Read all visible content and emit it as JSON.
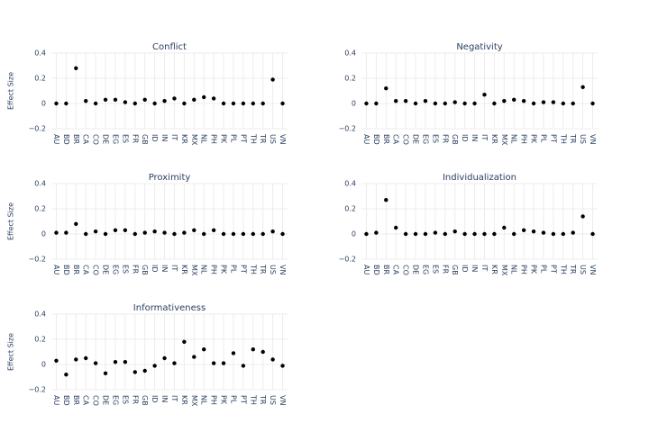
{
  "chart_data": [
    {
      "type": "scatter",
      "title": "Conflict",
      "ylabel": "Effect Size",
      "color": "#000000",
      "categories": [
        "AU",
        "BD",
        "BR",
        "CA",
        "CO",
        "DE",
        "EG",
        "ES",
        "FR",
        "GB",
        "ID",
        "IN",
        "IT",
        "KR",
        "MX",
        "NL",
        "PH",
        "PK",
        "PL",
        "PT",
        "TH",
        "TR",
        "US",
        "VN"
      ],
      "values": [
        0,
        0,
        0.28,
        0.02,
        0,
        0.03,
        0.03,
        0.01,
        0,
        0.03,
        0,
        0.02,
        0.04,
        0,
        0.03,
        0.05,
        0.04,
        0,
        0,
        0,
        0,
        0,
        0.19,
        0
      ],
      "ylim": [
        -0.2,
        0.4
      ],
      "yticks": [
        {
          "value": -0.2,
          "label": "−0.2"
        },
        0,
        0.2,
        0.4
      ],
      "grid": true
    },
    {
      "type": "scatter",
      "title": "Negativity",
      "color": "#000000",
      "categories": [
        "AU",
        "BD",
        "BR",
        "CA",
        "CO",
        "DE",
        "EG",
        "ES",
        "FR",
        "GB",
        "ID",
        "IN",
        "IT",
        "KR",
        "MX",
        "NL",
        "PH",
        "PK",
        "PL",
        "PT",
        "TH",
        "TR",
        "US",
        "VN"
      ],
      "values": [
        0,
        0,
        0.12,
        0.02,
        0.02,
        0,
        0.02,
        0,
        0,
        0.01,
        0,
        0,
        0.07,
        0,
        0.02,
        0.03,
        0.02,
        0,
        0.01,
        0.01,
        0,
        0,
        0.13,
        0
      ],
      "ylim": [
        -0.2,
        0.4
      ],
      "yticks": [
        {
          "value": -0.2,
          "label": "−0.2"
        },
        0,
        0.2,
        0.4
      ],
      "grid": true
    },
    {
      "type": "scatter",
      "title": "Proximity",
      "ylabel": "Effect Size",
      "color": "#000000",
      "categories": [
        "AU",
        "BD",
        "BR",
        "CA",
        "CO",
        "DE",
        "EG",
        "ES",
        "FR",
        "GB",
        "ID",
        "IN",
        "IT",
        "KR",
        "MX",
        "NL",
        "PH",
        "PK",
        "PL",
        "PT",
        "TH",
        "TR",
        "US",
        "VN"
      ],
      "values": [
        0.01,
        0.01,
        0.08,
        0,
        0.02,
        0,
        0.03,
        0.03,
        0,
        0.01,
        0.02,
        0.01,
        0,
        0.01,
        0.03,
        0,
        0.03,
        0,
        0,
        0,
        0,
        0,
        0.02,
        0
      ],
      "ylim": [
        -0.2,
        0.4
      ],
      "yticks": [
        {
          "value": -0.2,
          "label": "−0.2"
        },
        0,
        0.2,
        0.4
      ],
      "grid": true
    },
    {
      "type": "scatter",
      "title": "Individualization",
      "color": "#000000",
      "categories": [
        "AU",
        "BD",
        "BR",
        "CA",
        "CO",
        "DE",
        "EG",
        "ES",
        "FR",
        "GB",
        "ID",
        "IN",
        "IT",
        "KR",
        "MX",
        "NL",
        "PH",
        "PK",
        "PL",
        "PT",
        "TH",
        "TR",
        "US",
        "VN"
      ],
      "values": [
        0,
        0.01,
        0.27,
        0.05,
        0,
        0,
        0,
        0.01,
        0,
        0.02,
        0,
        0,
        0,
        0,
        0.05,
        0,
        0.03,
        0.02,
        0.01,
        0,
        0,
        0.01,
        0.14,
        0
      ],
      "ylim": [
        -0.2,
        0.4
      ],
      "yticks": [
        {
          "value": -0.2,
          "label": "−0.2"
        },
        0,
        0.2,
        0.4
      ],
      "grid": true
    },
    {
      "type": "scatter",
      "title": "Informativeness",
      "ylabel": "Effect Size",
      "color": "#000000",
      "categories": [
        "AU",
        "BD",
        "BR",
        "CA",
        "CO",
        "DE",
        "EG",
        "ES",
        "FR",
        "GB",
        "ID",
        "IN",
        "IT",
        "KR",
        "MX",
        "NL",
        "PH",
        "PK",
        "PL",
        "PT",
        "TH",
        "TR",
        "US",
        "VN"
      ],
      "values": [
        0.03,
        -0.08,
        0.04,
        0.05,
        0.01,
        -0.07,
        0.02,
        0.02,
        -0.06,
        -0.05,
        -0.01,
        0.05,
        0.01,
        0.18,
        0.06,
        0.12,
        0.01,
        0.01,
        0.09,
        -0.01,
        0.12,
        0.1,
        0.04,
        -0.01
      ],
      "ylim": [
        -0.2,
        0.4
      ],
      "yticks": [
        {
          "value": -0.2,
          "label": "−0.2"
        },
        0,
        0.2,
        0.4
      ],
      "grid": true
    }
  ]
}
